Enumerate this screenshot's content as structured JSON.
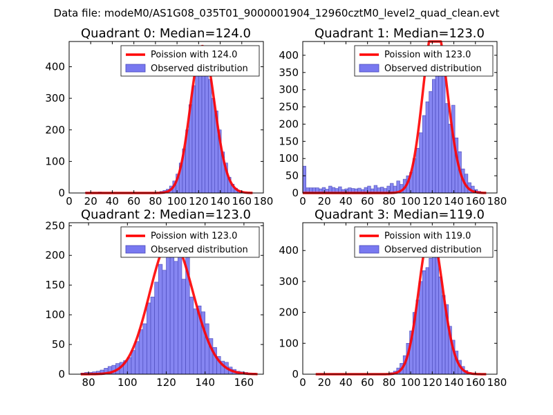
{
  "figure_title": "Data file: modeM0/AS1G08_035T01_9000001904_12960cztM0_level2_quad_clean.evt",
  "colors": {
    "bar_fill": "#7878f0",
    "bar_edge": "#4848b8",
    "curve": "#ff0000"
  },
  "chart_data": [
    {
      "type": "bar",
      "title": "Quadrant 0: Median=124.0",
      "median": 124.0,
      "xlim": [
        0,
        180
      ],
      "ylim": [
        0,
        480
      ],
      "xticks": [
        0,
        20,
        40,
        60,
        80,
        100,
        120,
        140,
        160,
        180
      ],
      "yticks": [
        0,
        100,
        200,
        300,
        400
      ],
      "legend": [
        "Poission with 124.0",
        "Observed distribution"
      ],
      "curve_x_range": [
        15,
        170
      ],
      "bins": [
        {
          "x": 15,
          "w": 3,
          "h": 2
        },
        {
          "x": 27,
          "w": 3,
          "h": 3
        },
        {
          "x": 84,
          "w": 3,
          "h": 5
        },
        {
          "x": 87,
          "w": 3,
          "h": 8
        },
        {
          "x": 90,
          "w": 3,
          "h": 12
        },
        {
          "x": 93,
          "w": 3,
          "h": 22
        },
        {
          "x": 96,
          "w": 3,
          "h": 38
        },
        {
          "x": 99,
          "w": 3,
          "h": 60
        },
        {
          "x": 102,
          "w": 3,
          "h": 95
        },
        {
          "x": 105,
          "w": 3,
          "h": 140
        },
        {
          "x": 108,
          "w": 3,
          "h": 200
        },
        {
          "x": 111,
          "w": 3,
          "h": 280
        },
        {
          "x": 114,
          "w": 3,
          "h": 340
        },
        {
          "x": 117,
          "w": 3,
          "h": 400
        },
        {
          "x": 120,
          "w": 3,
          "h": 460
        },
        {
          "x": 123,
          "w": 3,
          "h": 395
        },
        {
          "x": 126,
          "w": 3,
          "h": 420
        },
        {
          "x": 129,
          "w": 3,
          "h": 360
        },
        {
          "x": 132,
          "w": 3,
          "h": 300
        },
        {
          "x": 135,
          "w": 3,
          "h": 260
        },
        {
          "x": 138,
          "w": 3,
          "h": 200
        },
        {
          "x": 141,
          "w": 3,
          "h": 130
        },
        {
          "x": 144,
          "w": 3,
          "h": 95
        },
        {
          "x": 147,
          "w": 3,
          "h": 50
        },
        {
          "x": 150,
          "w": 3,
          "h": 28
        },
        {
          "x": 153,
          "w": 3,
          "h": 15
        },
        {
          "x": 156,
          "w": 3,
          "h": 8
        },
        {
          "x": 159,
          "w": 3,
          "h": 4
        }
      ]
    },
    {
      "type": "bar",
      "title": "Quadrant 1: Median=123.0",
      "median": 123.0,
      "xlim": [
        0,
        180
      ],
      "ylim": [
        0,
        440
      ],
      "xticks": [
        0,
        20,
        40,
        60,
        80,
        100,
        120,
        140,
        160,
        180
      ],
      "yticks": [
        0,
        50,
        100,
        150,
        200,
        250,
        300,
        350,
        400
      ],
      "legend": [
        "Poission with 123.0",
        "Observed distribution"
      ],
      "curve_x_range": [
        0,
        170
      ],
      "bins": [
        {
          "x": 0,
          "w": 3,
          "h": 78
        },
        {
          "x": 3,
          "w": 3,
          "h": 15
        },
        {
          "x": 6,
          "w": 3,
          "h": 15
        },
        {
          "x": 9,
          "w": 3,
          "h": 15
        },
        {
          "x": 12,
          "w": 3,
          "h": 15
        },
        {
          "x": 15,
          "w": 3,
          "h": 12
        },
        {
          "x": 18,
          "w": 3,
          "h": 16
        },
        {
          "x": 21,
          "w": 3,
          "h": 11
        },
        {
          "x": 24,
          "w": 3,
          "h": 20
        },
        {
          "x": 27,
          "w": 3,
          "h": 16
        },
        {
          "x": 30,
          "w": 3,
          "h": 13
        },
        {
          "x": 33,
          "w": 3,
          "h": 18
        },
        {
          "x": 36,
          "w": 3,
          "h": 10
        },
        {
          "x": 39,
          "w": 3,
          "h": 12
        },
        {
          "x": 42,
          "w": 3,
          "h": 15
        },
        {
          "x": 45,
          "w": 3,
          "h": 13
        },
        {
          "x": 48,
          "w": 3,
          "h": 12
        },
        {
          "x": 51,
          "w": 3,
          "h": 14
        },
        {
          "x": 54,
          "w": 3,
          "h": 10
        },
        {
          "x": 57,
          "w": 3,
          "h": 16
        },
        {
          "x": 60,
          "w": 3,
          "h": 20
        },
        {
          "x": 63,
          "w": 3,
          "h": 12
        },
        {
          "x": 66,
          "w": 3,
          "h": 22
        },
        {
          "x": 69,
          "w": 3,
          "h": 15
        },
        {
          "x": 72,
          "w": 3,
          "h": 17
        },
        {
          "x": 75,
          "w": 3,
          "h": 13
        },
        {
          "x": 78,
          "w": 3,
          "h": 20
        },
        {
          "x": 81,
          "w": 3,
          "h": 28
        },
        {
          "x": 84,
          "w": 3,
          "h": 20
        },
        {
          "x": 87,
          "w": 3,
          "h": 35
        },
        {
          "x": 90,
          "w": 3,
          "h": 25
        },
        {
          "x": 93,
          "w": 3,
          "h": 40
        },
        {
          "x": 96,
          "w": 3,
          "h": 50
        },
        {
          "x": 99,
          "w": 3,
          "h": 60
        },
        {
          "x": 102,
          "w": 3,
          "h": 100
        },
        {
          "x": 105,
          "w": 3,
          "h": 130
        },
        {
          "x": 108,
          "w": 3,
          "h": 175
        },
        {
          "x": 111,
          "w": 3,
          "h": 225
        },
        {
          "x": 114,
          "w": 3,
          "h": 265
        },
        {
          "x": 117,
          "w": 3,
          "h": 295
        },
        {
          "x": 120,
          "w": 3,
          "h": 330
        },
        {
          "x": 123,
          "w": 3,
          "h": 420
        },
        {
          "x": 126,
          "w": 3,
          "h": 405
        },
        {
          "x": 129,
          "w": 3,
          "h": 370
        },
        {
          "x": 132,
          "w": 3,
          "h": 260
        },
        {
          "x": 135,
          "w": 3,
          "h": 200
        },
        {
          "x": 138,
          "w": 3,
          "h": 255
        },
        {
          "x": 141,
          "w": 3,
          "h": 160
        },
        {
          "x": 144,
          "w": 3,
          "h": 120
        },
        {
          "x": 147,
          "w": 3,
          "h": 70
        },
        {
          "x": 150,
          "w": 3,
          "h": 55
        },
        {
          "x": 153,
          "w": 3,
          "h": 30
        },
        {
          "x": 156,
          "w": 3,
          "h": 20
        },
        {
          "x": 159,
          "w": 3,
          "h": 10
        },
        {
          "x": 162,
          "w": 3,
          "h": 5
        }
      ]
    },
    {
      "type": "bar",
      "title": "Quadrant 2: Median=123.0",
      "median": 123.0,
      "xlim": [
        70,
        170
      ],
      "ylim": [
        0,
        255
      ],
      "xticks": [
        80,
        100,
        120,
        140,
        160
      ],
      "yticks": [
        0,
        50,
        100,
        150,
        200,
        250
      ],
      "legend": [
        "Poission with 123.0",
        "Observed distribution"
      ],
      "curve_x_range": [
        76,
        167
      ],
      "bins": [
        {
          "x": 76,
          "w": 2,
          "h": 2
        },
        {
          "x": 78,
          "w": 2,
          "h": 3
        },
        {
          "x": 80,
          "w": 2,
          "h": 3
        },
        {
          "x": 82,
          "w": 2,
          "h": 4
        },
        {
          "x": 84,
          "w": 2,
          "h": 5
        },
        {
          "x": 86,
          "w": 2,
          "h": 7
        },
        {
          "x": 88,
          "w": 2,
          "h": 10
        },
        {
          "x": 90,
          "w": 2,
          "h": 13
        },
        {
          "x": 92,
          "w": 2,
          "h": 15
        },
        {
          "x": 94,
          "w": 2,
          "h": 18
        },
        {
          "x": 96,
          "w": 2,
          "h": 20
        },
        {
          "x": 98,
          "w": 2,
          "h": 23
        },
        {
          "x": 100,
          "w": 2,
          "h": 28
        },
        {
          "x": 102,
          "w": 2,
          "h": 40
        },
        {
          "x": 104,
          "w": 2,
          "h": 55
        },
        {
          "x": 106,
          "w": 2,
          "h": 75
        },
        {
          "x": 108,
          "w": 2,
          "h": 85
        },
        {
          "x": 110,
          "w": 2,
          "h": 120
        },
        {
          "x": 112,
          "w": 2,
          "h": 130
        },
        {
          "x": 114,
          "w": 2,
          "h": 155
        },
        {
          "x": 116,
          "w": 2,
          "h": 185
        },
        {
          "x": 118,
          "w": 2,
          "h": 175
        },
        {
          "x": 120,
          "w": 2,
          "h": 205
        },
        {
          "x": 122,
          "w": 2,
          "h": 245
        },
        {
          "x": 124,
          "w": 2,
          "h": 190
        },
        {
          "x": 126,
          "w": 2,
          "h": 220
        },
        {
          "x": 128,
          "w": 2,
          "h": 160
        },
        {
          "x": 130,
          "w": 2,
          "h": 215
        },
        {
          "x": 132,
          "w": 2,
          "h": 130
        },
        {
          "x": 134,
          "w": 2,
          "h": 110
        },
        {
          "x": 136,
          "w": 2,
          "h": 115
        },
        {
          "x": 138,
          "w": 2,
          "h": 105
        },
        {
          "x": 140,
          "w": 2,
          "h": 85
        },
        {
          "x": 142,
          "w": 2,
          "h": 60
        },
        {
          "x": 144,
          "w": 2,
          "h": 45
        },
        {
          "x": 146,
          "w": 2,
          "h": 30
        },
        {
          "x": 148,
          "w": 2,
          "h": 22
        },
        {
          "x": 150,
          "w": 2,
          "h": 20
        },
        {
          "x": 152,
          "w": 2,
          "h": 12
        },
        {
          "x": 154,
          "w": 2,
          "h": 8
        },
        {
          "x": 156,
          "w": 2,
          "h": 5
        },
        {
          "x": 158,
          "w": 2,
          "h": 4
        },
        {
          "x": 160,
          "w": 2,
          "h": 3
        },
        {
          "x": 162,
          "w": 2,
          "h": 2
        },
        {
          "x": 164,
          "w": 2,
          "h": 2
        }
      ]
    },
    {
      "type": "bar",
      "title": "Quadrant 3: Median=119.0",
      "median": 119.0,
      "xlim": [
        0,
        180
      ],
      "ylim": [
        0,
        490
      ],
      "xticks": [
        0,
        20,
        40,
        60,
        80,
        100,
        120,
        140,
        160,
        180
      ],
      "yticks": [
        0,
        100,
        200,
        300,
        400
      ],
      "legend": [
        "Poission with 119.0",
        "Observed distribution"
      ],
      "curve_x_range": [
        12,
        170
      ],
      "bins": [
        {
          "x": 81,
          "w": 3,
          "h": 5
        },
        {
          "x": 84,
          "w": 3,
          "h": 10
        },
        {
          "x": 87,
          "w": 3,
          "h": 20
        },
        {
          "x": 90,
          "w": 3,
          "h": 35
        },
        {
          "x": 93,
          "w": 3,
          "h": 60
        },
        {
          "x": 96,
          "w": 3,
          "h": 100
        },
        {
          "x": 99,
          "w": 3,
          "h": 140
        },
        {
          "x": 102,
          "w": 3,
          "h": 200
        },
        {
          "x": 105,
          "w": 3,
          "h": 240
        },
        {
          "x": 108,
          "w": 3,
          "h": 300
        },
        {
          "x": 111,
          "w": 3,
          "h": 335
        },
        {
          "x": 114,
          "w": 3,
          "h": 345
        },
        {
          "x": 117,
          "w": 3,
          "h": 375
        },
        {
          "x": 120,
          "w": 3,
          "h": 460
        },
        {
          "x": 123,
          "w": 3,
          "h": 385
        },
        {
          "x": 126,
          "w": 3,
          "h": 315
        },
        {
          "x": 129,
          "w": 3,
          "h": 255
        },
        {
          "x": 132,
          "w": 3,
          "h": 225
        },
        {
          "x": 135,
          "w": 3,
          "h": 155
        },
        {
          "x": 138,
          "w": 3,
          "h": 110
        },
        {
          "x": 141,
          "w": 3,
          "h": 75
        },
        {
          "x": 144,
          "w": 3,
          "h": 45
        },
        {
          "x": 147,
          "w": 3,
          "h": 25
        },
        {
          "x": 150,
          "w": 3,
          "h": 12
        },
        {
          "x": 153,
          "w": 3,
          "h": 6
        },
        {
          "x": 156,
          "w": 3,
          "h": 3
        }
      ]
    }
  ]
}
